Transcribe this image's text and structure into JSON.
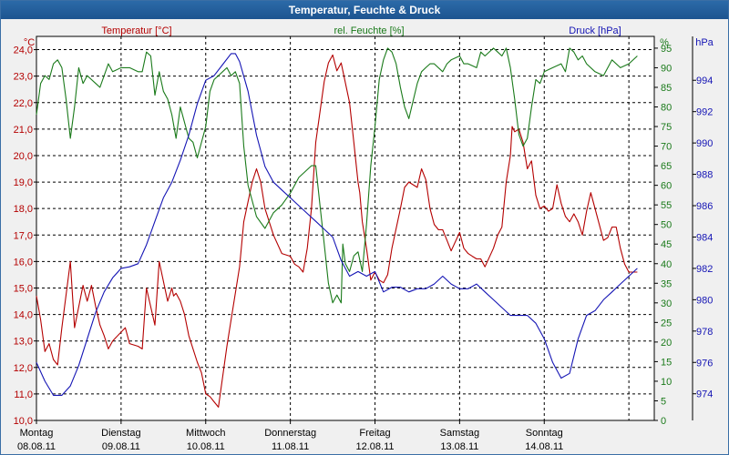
{
  "window": {
    "title": "Temperatur, Feuchte & Druck"
  },
  "colors": {
    "temperature": "#b40000",
    "humidity": "#1a7a1a",
    "pressure": "#1414b4",
    "background": "#ffffff",
    "grid": "#000000"
  },
  "chart_data": {
    "type": "line",
    "title": "Temperatur, Feuchte & Druck",
    "grid": true,
    "x": {
      "range": [
        0,
        7.3
      ],
      "ticks": [
        0,
        1,
        2,
        3,
        4,
        5,
        6,
        7
      ],
      "day_labels": [
        "Montag",
        "Dienstag",
        "Mittwoch",
        "Donnerstag",
        "Freitag",
        "Samstag",
        "Sonntag"
      ],
      "date_labels": [
        "08.08.11",
        "09.08.11",
        "10.08.11",
        "11.08.11",
        "12.08.11",
        "13.08.11",
        "14.08.11"
      ]
    },
    "axes": {
      "temperature": {
        "label": "Temperatur [°C]",
        "unit": "°C",
        "range": [
          10,
          24.5
        ],
        "ticks": [
          "10,0",
          "11,0",
          "12,0",
          "13,0",
          "14,0",
          "15,0",
          "16,0",
          "17,0",
          "18,0",
          "19,0",
          "20,0",
          "21,0",
          "22,0",
          "23,0",
          "24,0"
        ]
      },
      "humidity": {
        "label": "rel. Feuchte [%]",
        "unit": "%",
        "range": [
          0,
          98
        ],
        "ticks": [
          "0",
          "5",
          "10",
          "15",
          "20",
          "25",
          "30",
          "35",
          "40",
          "45",
          "50",
          "55",
          "60",
          "65",
          "70",
          "75",
          "80",
          "85",
          "90",
          "95"
        ]
      },
      "pressure": {
        "label": "Druck [hPa]",
        "unit": "hPa",
        "range": [
          972.3,
          996.8
        ],
        "ticks": [
          "974",
          "976",
          "978",
          "980",
          "982",
          "984",
          "986",
          "988",
          "990",
          "992",
          "994"
        ]
      }
    },
    "series": [
      {
        "name": "Temperatur [°C]",
        "axis": "temperature",
        "x": [
          0,
          0.05,
          0.1,
          0.15,
          0.2,
          0.25,
          0.3,
          0.4,
          0.45,
          0.55,
          0.6,
          0.65,
          0.7,
          0.75,
          0.8,
          0.85,
          0.9,
          1.05,
          1.1,
          1.2,
          1.25,
          1.3,
          1.4,
          1.45,
          1.55,
          1.6,
          1.62,
          1.65,
          1.7,
          1.75,
          1.8,
          1.9,
          1.95,
          2.0,
          2.05,
          2.1,
          2.15,
          2.25,
          2.3,
          2.4,
          2.45,
          2.55,
          2.6,
          2.65,
          2.7,
          2.8,
          2.9,
          3.0,
          3.05,
          3.1,
          3.15,
          3.2,
          3.25,
          3.3,
          3.4,
          3.45,
          3.5,
          3.55,
          3.6,
          3.7,
          3.75,
          3.8,
          3.82,
          3.85,
          3.9,
          3.95,
          4.0,
          4.05,
          4.1,
          4.15,
          4.2,
          4.3,
          4.35,
          4.4,
          4.5,
          4.55,
          4.6,
          4.65,
          4.7,
          4.75,
          4.8,
          4.85,
          4.9,
          5.0,
          5.05,
          5.1,
          5.15,
          5.2,
          5.25,
          5.3,
          5.4,
          5.45,
          5.5,
          5.55,
          5.6,
          5.62,
          5.65,
          5.7,
          5.75,
          5.8,
          5.85,
          5.9,
          5.95,
          6.0,
          6.05,
          6.1,
          6.15,
          6.2,
          6.25,
          6.3,
          6.35,
          6.4,
          6.45,
          6.5,
          6.55,
          6.6,
          6.7,
          6.75,
          6.8,
          6.85,
          6.9,
          6.95,
          7.0,
          7.05,
          7.1
        ],
        "values": [
          14.7,
          13.8,
          12.6,
          12.9,
          12.3,
          12.1,
          13.5,
          16.0,
          13.5,
          15.1,
          14.5,
          15.1,
          14.3,
          13.6,
          13.2,
          12.7,
          13.0,
          13.5,
          12.9,
          12.8,
          12.7,
          15.0,
          13.6,
          16.0,
          14.5,
          15.0,
          14.7,
          14.8,
          14.5,
          14.0,
          13.2,
          12.2,
          11.8,
          11.0,
          10.9,
          10.7,
          10.5,
          12.8,
          13.8,
          15.8,
          17.5,
          19.0,
          19.5,
          19.0,
          18.0,
          17.0,
          16.3,
          16.2,
          15.9,
          15.8,
          15.6,
          16.5,
          18.0,
          20.5,
          22.8,
          23.5,
          23.8,
          23.2,
          23.5,
          22.0,
          20.5,
          19.0,
          18.6,
          17.5,
          16.5,
          15.3,
          15.6,
          15.3,
          15.2,
          15.5,
          16.5,
          18.0,
          18.8,
          19.0,
          18.8,
          19.5,
          19.1,
          18.0,
          17.4,
          17.2,
          17.2,
          16.8,
          16.4,
          17.1,
          16.5,
          16.3,
          16.2,
          16.1,
          16.1,
          15.8,
          16.5,
          17.0,
          17.3,
          19.0,
          20.0,
          21.1,
          20.9,
          21.0,
          20.5,
          19.5,
          19.8,
          18.5,
          18.0,
          18.1,
          17.9,
          18.0,
          18.9,
          18.2,
          17.7,
          17.5,
          17.8,
          17.5,
          17.0,
          17.9,
          18.6,
          18.0,
          16.8,
          16.9,
          17.3,
          17.3,
          16.5,
          15.9,
          15.6,
          15.6,
          15.6
        ]
      },
      {
        "name": "rel. Feuchte [%]",
        "axis": "humidity",
        "x": [
          0,
          0.05,
          0.1,
          0.15,
          0.2,
          0.25,
          0.3,
          0.35,
          0.4,
          0.45,
          0.5,
          0.55,
          0.6,
          0.7,
          0.75,
          0.8,
          0.85,
          0.9,
          1.0,
          1.05,
          1.1,
          1.2,
          1.25,
          1.3,
          1.35,
          1.4,
          1.45,
          1.5,
          1.55,
          1.6,
          1.65,
          1.7,
          1.8,
          1.85,
          1.9,
          2.0,
          2.05,
          2.1,
          2.15,
          2.2,
          2.25,
          2.3,
          2.35,
          2.4,
          2.45,
          2.5,
          2.6,
          2.7,
          2.8,
          2.9,
          3.0,
          3.05,
          3.1,
          3.2,
          3.25,
          3.3,
          3.35,
          3.4,
          3.45,
          3.5,
          3.55,
          3.6,
          3.62,
          3.65,
          3.7,
          3.75,
          3.8,
          3.85,
          3.9,
          3.95,
          4.0,
          4.05,
          4.1,
          4.15,
          4.2,
          4.25,
          4.3,
          4.35,
          4.4,
          4.5,
          4.55,
          4.6,
          4.65,
          4.7,
          4.8,
          4.85,
          4.9,
          5.0,
          5.05,
          5.1,
          5.2,
          5.25,
          5.3,
          5.4,
          5.45,
          5.5,
          5.55,
          5.6,
          5.65,
          5.7,
          5.75,
          5.8,
          5.85,
          5.9,
          5.95,
          6.0,
          6.1,
          6.2,
          6.25,
          6.3,
          6.35,
          6.4,
          6.45,
          6.5,
          6.6,
          6.7,
          6.8,
          6.9,
          7.0,
          7.1
        ],
        "values": [
          78,
          86,
          88,
          87,
          91,
          92,
          90,
          82,
          72,
          80,
          90,
          86,
          88,
          86,
          85,
          88,
          91,
          89,
          90,
          90,
          90,
          89,
          89,
          94,
          93,
          83,
          89,
          84,
          82,
          78,
          72,
          80,
          72,
          71,
          67,
          75,
          84,
          87,
          88,
          89,
          90,
          88,
          89,
          86,
          70,
          60,
          52,
          49,
          53,
          55,
          58,
          60,
          62,
          64,
          65,
          65,
          55,
          45,
          35,
          30,
          32,
          30,
          45,
          40,
          38,
          42,
          43,
          38,
          50,
          65,
          75,
          87,
          92,
          95,
          94,
          91,
          85,
          80,
          77,
          86,
          89,
          90,
          91,
          91,
          89,
          91,
          92,
          93,
          91,
          91,
          90,
          94,
          93,
          95,
          94,
          93,
          95,
          90,
          82,
          73,
          70,
          72,
          80,
          87,
          86,
          89,
          90,
          91,
          89,
          95,
          94,
          92,
          93,
          91,
          89,
          88,
          92,
          90,
          91,
          93
        ]
      },
      {
        "name": "Druck [hPa]",
        "axis": "pressure",
        "x": [
          0,
          0.1,
          0.2,
          0.3,
          0.4,
          0.5,
          0.6,
          0.7,
          0.8,
          0.9,
          1.0,
          1.1,
          1.2,
          1.3,
          1.4,
          1.5,
          1.6,
          1.7,
          1.8,
          1.9,
          2.0,
          2.1,
          2.2,
          2.3,
          2.35,
          2.4,
          2.5,
          2.6,
          2.7,
          2.8,
          2.9,
          3.0,
          3.1,
          3.2,
          3.3,
          3.4,
          3.5,
          3.6,
          3.7,
          3.8,
          3.9,
          4.0,
          4.1,
          4.2,
          4.3,
          4.4,
          4.5,
          4.6,
          4.7,
          4.8,
          4.9,
          5.0,
          5.1,
          5.2,
          5.3,
          5.4,
          5.5,
          5.6,
          5.7,
          5.8,
          5.9,
          6.0,
          6.1,
          6.2,
          6.3,
          6.4,
          6.5,
          6.6,
          6.7,
          6.8,
          6.9,
          7.0,
          7.1
        ],
        "values": [
          976.0,
          974.8,
          973.9,
          973.9,
          974.5,
          975.8,
          977.5,
          979.2,
          980.5,
          981.4,
          982.0,
          982.1,
          982.3,
          983.5,
          985.0,
          986.5,
          987.5,
          988.9,
          990.5,
          992.5,
          994.0,
          994.3,
          995.0,
          995.7,
          995.7,
          995.2,
          993.3,
          990.5,
          988.5,
          987.5,
          987.0,
          986.5,
          986.0,
          985.5,
          985.0,
          984.5,
          984.0,
          982.5,
          981.5,
          981.8,
          981.5,
          981.8,
          980.5,
          980.8,
          980.8,
          980.5,
          980.7,
          980.7,
          981.0,
          981.5,
          981.0,
          980.7,
          980.7,
          981.0,
          980.5,
          980.0,
          979.5,
          979.0,
          979.0,
          979.0,
          978.5,
          977.5,
          976.0,
          975.0,
          975.3,
          977.5,
          979.0,
          979.3,
          980.0,
          980.5,
          981.0,
          981.5,
          982.0
        ]
      }
    ]
  }
}
